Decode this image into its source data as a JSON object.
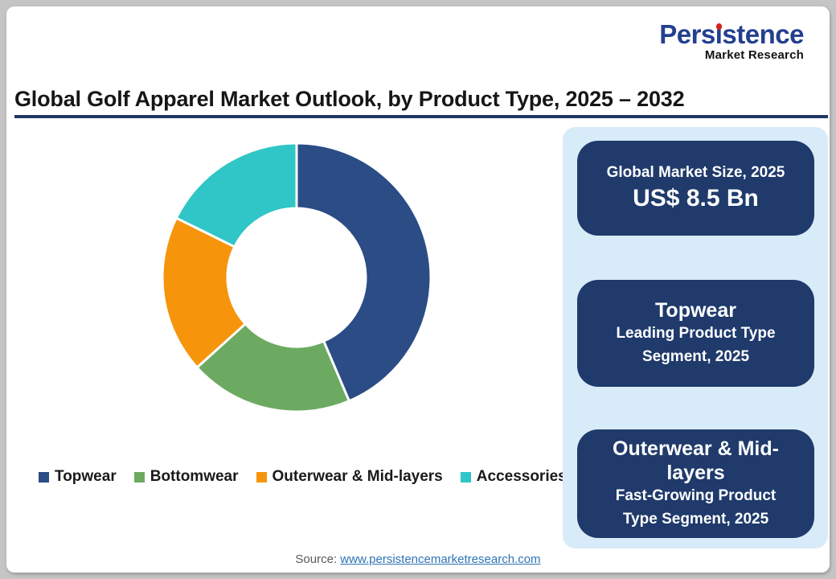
{
  "logo": {
    "name": "Persistence",
    "tagline": "Market Research",
    "name_color": "#233F8F",
    "dot_color": "#D6231F"
  },
  "title": "Global Golf Apparel Market Outlook, by Product Type, 2025 – 2032",
  "chart_data": {
    "type": "pie",
    "subtype": "donut",
    "title": "Global Golf Apparel Market Outlook, by Product Type, 2025 – 2032",
    "categories": [
      "Topwear",
      "Bottomwear",
      "Outerwear & Mid-layers",
      "Accessories"
    ],
    "values": [
      43.6,
      19.7,
      19.0,
      17.7
    ],
    "values_unit": "percent share (estimated from arc angles; no data labels shown)",
    "colors": [
      "#2B4C85",
      "#6CAA61",
      "#F6940C",
      "#30C5C6"
    ],
    "start_angle_deg": 0,
    "direction": "clockwise",
    "inner_radius_ratio": 0.51,
    "legend_position": "bottom",
    "data_labels": "none"
  },
  "panel": {
    "background": "#D8EBF8",
    "box_color": "#1F3A6B",
    "boxes": [
      {
        "title": "Global Market Size, 2025",
        "value": "US$ 8.5 Bn"
      },
      {
        "title": "Topwear",
        "subtitle": "Leading Product Type Segment, 2025"
      },
      {
        "title": "Outerwear & Mid-layers",
        "subtitle": "Fast-Growing Product Type Segment, 2025"
      }
    ]
  },
  "source": {
    "label": "Source:",
    "link_text": "www.persistencemarketresearch.com"
  }
}
